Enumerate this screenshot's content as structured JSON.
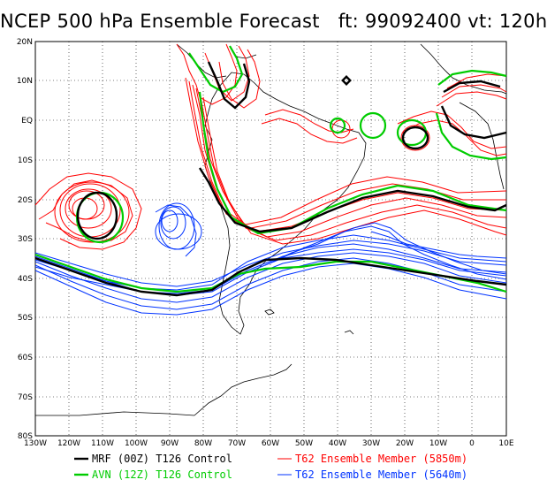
{
  "title": "NCEP 500 hPa Ensemble Forecast   ft: 99092400 vt: 120h",
  "map": {
    "lat_labels": [
      "20N",
      "10N",
      "EQ",
      "10S",
      "20S",
      "30S",
      "40S",
      "50S",
      "60S",
      "70S",
      "80S"
    ],
    "lon_labels": [
      "130W",
      "120W",
      "110W",
      "100W",
      "90W",
      "80W",
      "70W",
      "60W",
      "50W",
      "40W",
      "30W",
      "20W",
      "10W",
      "0",
      "10E"
    ]
  },
  "legend": {
    "items": [
      {
        "label": "MRF (00Z) T126 Control",
        "color": "#000000"
      },
      {
        "label": "AVN (12Z) T126 Control",
        "color": "#00cc00"
      },
      {
        "label": "T62 Ensemble Member (5850m)",
        "color": "#ff0000"
      },
      {
        "label": "T62 Ensemble Member (5640m)",
        "color": "#0033ff"
      }
    ]
  },
  "colors": {
    "mrf": "#000000",
    "avn": "#00cc00",
    "ens_5850": "#ff0000",
    "ens_5640": "#0033ff",
    "coast": "#000000"
  }
}
